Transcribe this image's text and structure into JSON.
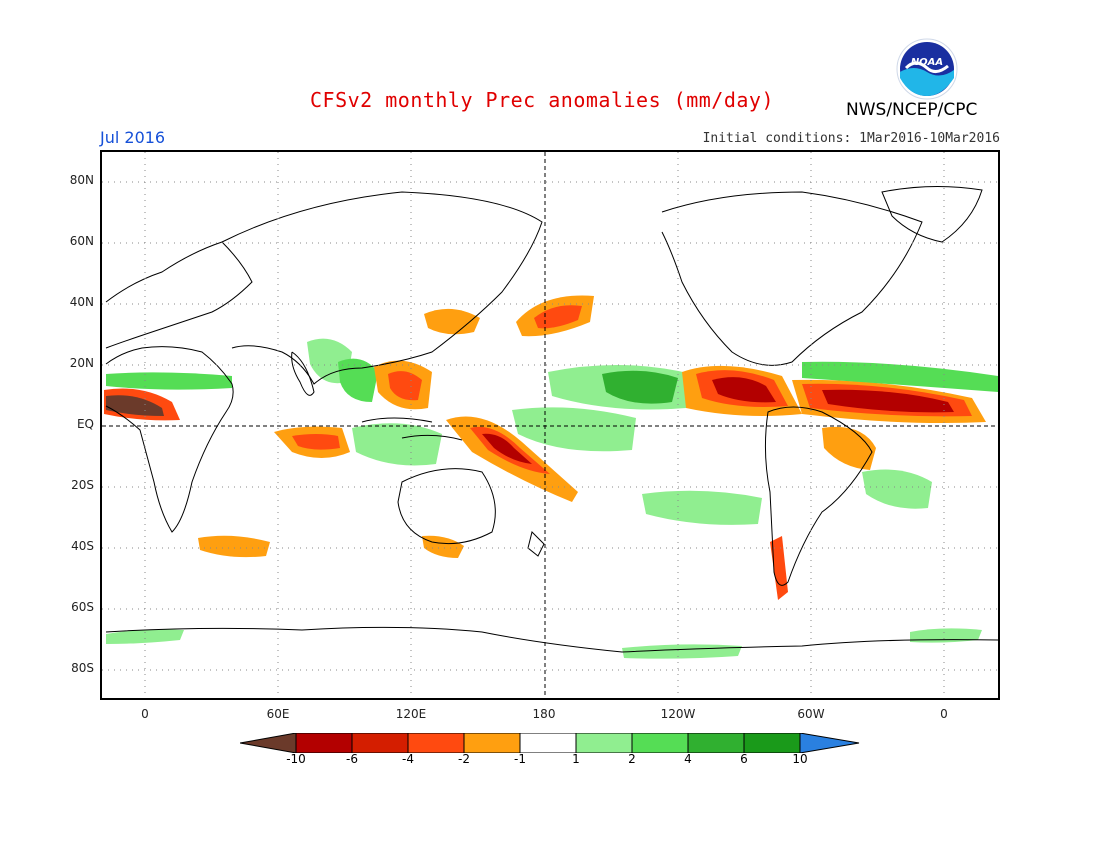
{
  "title": "CFSv2 monthly Prec anomalies (mm/day)",
  "agency": "NWS/NCEP/CPC",
  "logo_text": "NOAA",
  "valid_month": "Jul 2016",
  "initial_conditions": "Initial conditions: 1Mar2016-10Mar2016",
  "lat_labels": [
    "80N",
    "60N",
    "40N",
    "20N",
    "EQ",
    "20S",
    "40S",
    "60S",
    "80S"
  ],
  "lon_labels": [
    "0",
    "60E",
    "120E",
    "180",
    "120W",
    "60W",
    "0"
  ],
  "colorbar": {
    "labels": [
      "-10",
      "-6",
      "-4",
      "-2",
      "-1",
      "1",
      "2",
      "4",
      "6",
      "10"
    ],
    "colors": [
      "#6b3a2a",
      "#b30000",
      "#d41e00",
      "#ff4a10",
      "#ff9f10",
      "#ffffff",
      "#90ee90",
      "#55dd55",
      "#30b030",
      "#1a9a1a",
      "#2a80e0"
    ]
  },
  "colors": {
    "title": "#e00000",
    "month": "#1550d8",
    "dry_strong": "#b30000",
    "dry_mid": "#ff4a10",
    "dry_weak": "#ff9f10",
    "wet_weak": "#90ee90",
    "wet_mid": "#55dd55",
    "wet_strong": "#30b030"
  }
}
